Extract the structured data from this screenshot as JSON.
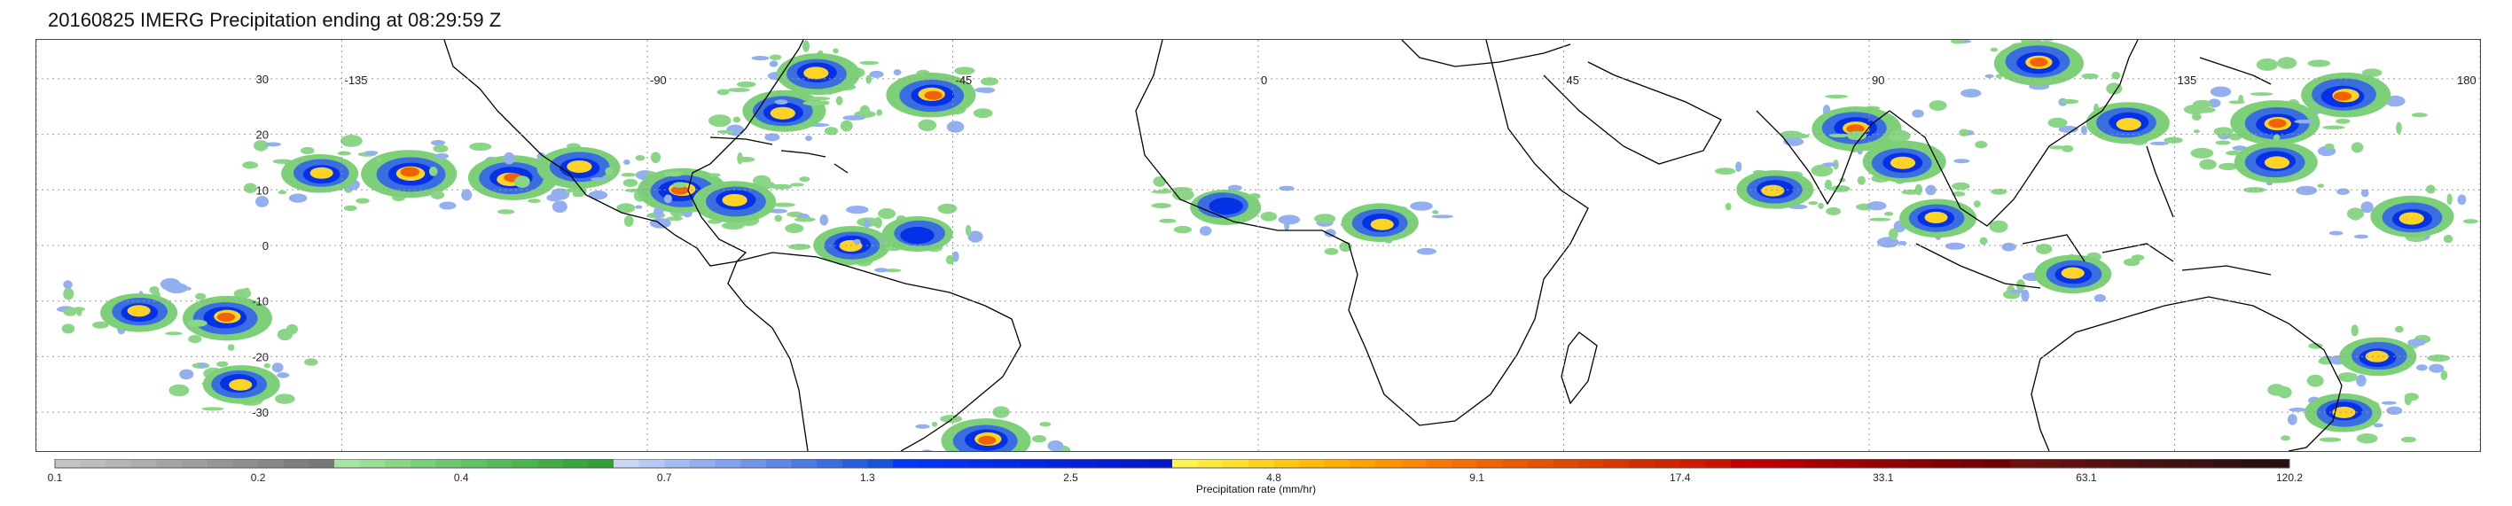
{
  "title": "20160825 IMERG Precipitation ending at 08:29:59 Z",
  "map": {
    "lon_range": [
      -180,
      180
    ],
    "lat_range": [
      -37,
      37
    ],
    "lat_labels": [
      "30",
      "20",
      "10",
      "0",
      "-10",
      "-20",
      "-30"
    ],
    "lat_values": [
      30,
      20,
      10,
      0,
      -10,
      -20,
      -30
    ],
    "lon_labels": [
      "-135",
      "-90",
      "-45",
      "0",
      "45",
      "90",
      "135",
      "180"
    ],
    "lon_values": [
      -135,
      -90,
      -45,
      0,
      45,
      90,
      135,
      180
    ],
    "gridlines": "dotted",
    "land_outline_color": "#000000",
    "precip_storms": [
      {
        "lon": -125,
        "lat": 13,
        "intensity": 0.9
      },
      {
        "lon": -138,
        "lat": 13,
        "intensity": 0.6
      },
      {
        "lon": -110,
        "lat": 12,
        "intensity": 0.8
      },
      {
        "lon": -100,
        "lat": 14,
        "intensity": 0.7
      },
      {
        "lon": -152,
        "lat": -13,
        "intensity": 0.8
      },
      {
        "lon": -165,
        "lat": -12,
        "intensity": 0.6
      },
      {
        "lon": -150,
        "lat": -25,
        "intensity": 0.6
      },
      {
        "lon": -70,
        "lat": 24,
        "intensity": 0.7
      },
      {
        "lon": -48,
        "lat": 27,
        "intensity": 0.8
      },
      {
        "lon": -65,
        "lat": 31,
        "intensity": 0.7
      },
      {
        "lon": -85,
        "lat": 10,
        "intensity": 0.8
      },
      {
        "lon": -77,
        "lat": 8,
        "intensity": 0.7
      },
      {
        "lon": -60,
        "lat": 0,
        "intensity": 0.6
      },
      {
        "lon": -50,
        "lat": 2,
        "intensity": 0.5
      },
      {
        "lon": -5,
        "lat": 7,
        "intensity": 0.5
      },
      {
        "lon": 18,
        "lat": 4,
        "intensity": 0.6
      },
      {
        "lon": 88,
        "lat": 21,
        "intensity": 0.8
      },
      {
        "lon": 76,
        "lat": 10,
        "intensity": 0.6
      },
      {
        "lon": 95,
        "lat": 15,
        "intensity": 0.7
      },
      {
        "lon": 100,
        "lat": 5,
        "intensity": 0.6
      },
      {
        "lon": 115,
        "lat": 33,
        "intensity": 0.8
      },
      {
        "lon": 128,
        "lat": 22,
        "intensity": 0.7
      },
      {
        "lon": 150,
        "lat": 22,
        "intensity": 0.8
      },
      {
        "lon": 160,
        "lat": 27,
        "intensity": 0.8
      },
      {
        "lon": 170,
        "lat": 5,
        "intensity": 0.7
      },
      {
        "lon": 165,
        "lat": -20,
        "intensity": 0.6
      },
      {
        "lon": 160,
        "lat": -30,
        "intensity": 0.6
      },
      {
        "lon": -40,
        "lat": -35,
        "intensity": 0.8
      },
      {
        "lon": 120,
        "lat": -5,
        "intensity": 0.6
      },
      {
        "lon": 150,
        "lat": 15,
        "intensity": 0.7
      }
    ]
  },
  "colorbar": {
    "caption": "Precipitation rate (mm/hr)",
    "tick_labels": [
      "0.1",
      "0.2",
      "0.4",
      "0.7",
      "1.3",
      "2.5",
      "4.8",
      "9.1",
      "17.4",
      "33.1",
      "63.1",
      "120.2"
    ],
    "colors": [
      "#c4c4c4",
      "#bdbdbd",
      "#b5b5b5",
      "#adadad",
      "#a5a5a5",
      "#9e9e9e",
      "#969696",
      "#8e8e8e",
      "#878787",
      "#7f7f7f",
      "#787878",
      "#a5e5a0",
      "#98de93",
      "#8ad686",
      "#7ccf79",
      "#6fc86d",
      "#62c163",
      "#57ba58",
      "#4db34f",
      "#44ab46",
      "#3ca43e",
      "#359c37",
      "#c9d7f7",
      "#b7caf5",
      "#a5bcf2",
      "#93afef",
      "#81a2ec",
      "#6f95e9",
      "#5e88e6",
      "#4c7ae3",
      "#3a6de0",
      "#285fdc",
      "#1753d9",
      "#0437f2",
      "#0434ee",
      "#0431e9",
      "#042ee4",
      "#032be0",
      "#0328db",
      "#0325d6",
      "#0322d2",
      "#021fcd",
      "#021cc8",
      "#021ac4",
      "#fff44f",
      "#ffe940",
      "#ffde33",
      "#ffd226",
      "#ffc61a",
      "#ffba10",
      "#ffad08",
      "#ffa004",
      "#ff9302",
      "#ff8601",
      "#fa7800",
      "#f56c00",
      "#f06300",
      "#eb5a00",
      "#e65100",
      "#e14800",
      "#dc3f00",
      "#d73600",
      "#d22d00",
      "#cd2500",
      "#c81d00",
      "#c31500",
      "#c00000",
      "#b80000",
      "#b00000",
      "#a80000",
      "#a00000",
      "#980000",
      "#900000",
      "#880000",
      "#800000",
      "#780000",
      "#700000",
      "#6e1010",
      "#661010",
      "#5e1010",
      "#561010",
      "#4f1010",
      "#481010",
      "#411010",
      "#3a1010",
      "#331010",
      "#2c1010",
      "#261010"
    ]
  }
}
